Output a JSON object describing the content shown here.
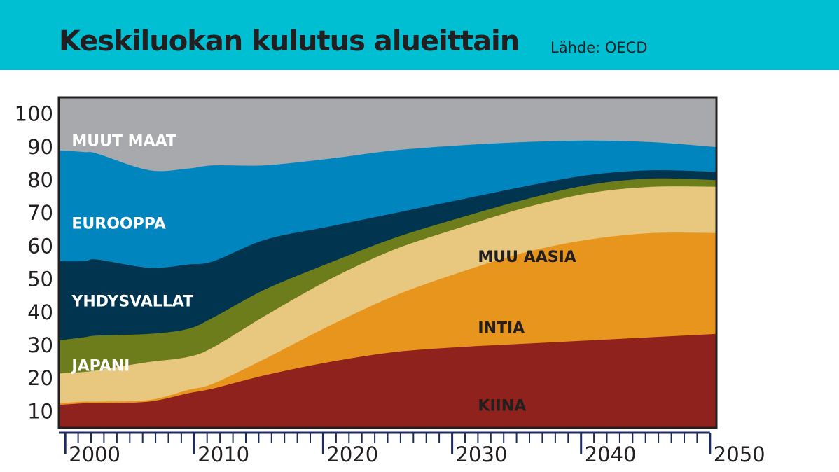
{
  "header": {
    "title": "Keskiluokan kulutus alueittain",
    "source": "Lähde: OECD"
  },
  "chart_data": {
    "type": "area",
    "stacked": true,
    "title": "Keskiluokan kulutus alueittain",
    "subtitle": "Lähde: OECD",
    "xlabel": "",
    "ylabel": "",
    "xlim": [
      1999,
      2050
    ],
    "ylim": [
      5,
      105
    ],
    "grid": false,
    "legend": "inline labels",
    "y_ticks": [
      "100",
      "90",
      "80",
      "70",
      "60",
      "50",
      "40",
      "30",
      "20",
      "10"
    ],
    "x_ticks": [
      "2000",
      "2010",
      "2020",
      "2030",
      "2040",
      "2050"
    ],
    "x": [
      1999,
      2001,
      2002,
      2006,
      2009,
      2011,
      2015,
      2020,
      2025,
      2030,
      2035,
      2040,
      2045,
      2050
    ],
    "series": [
      {
        "name": "KIINA",
        "color": "#8f221d",
        "values": [
          7,
          7.5,
          7.5,
          8,
          10.5,
          12,
          16,
          20,
          23,
          24.5,
          25.5,
          26.5,
          27.5,
          28.5
        ]
      },
      {
        "name": "INTIA",
        "color": "#e8951e",
        "values": [
          0.5,
          0.5,
          0.5,
          0.5,
          1,
          1.5,
          5,
          11,
          17,
          22.5,
          27.5,
          30.5,
          31.5,
          30.5
        ]
      },
      {
        "name": "JAPANI",
        "color": "#2e2e2e",
        "values": [
          0,
          0,
          0,
          0,
          0,
          0,
          0,
          0,
          0,
          0,
          0,
          0,
          0,
          0
        ],
        "label_only": true
      },
      {
        "name": "MUU AASIA",
        "color": "#e8c77f",
        "values": [
          9,
          9,
          9.5,
          11.5,
          10,
          11,
          13,
          14,
          14,
          13.5,
          13.5,
          14,
          14,
          14
        ]
      },
      {
        "name": "Japani (olive band)",
        "color": "#6d7d1b",
        "values": [
          10,
          10.5,
          10.5,
          8.5,
          8.5,
          9,
          8,
          5,
          3.5,
          3,
          2.5,
          2.5,
          2.5,
          2
        ]
      },
      {
        "name": "YHDYSVALLAT",
        "color": "#00344f",
        "values": [
          24,
          23,
          23,
          20,
          19.5,
          17,
          15,
          11,
          7.5,
          5.5,
          4,
          3,
          2.5,
          2.5
        ]
      },
      {
        "name": "EUROOPPA",
        "color": "#0085bf",
        "values": [
          33.5,
          33,
          32,
          29.5,
          29,
          29,
          22.5,
          20.5,
          19,
          16.5,
          13.5,
          10.5,
          8.5,
          7.5
        ]
      },
      {
        "name": "MUUT MAAT",
        "color": "#a7a9ac",
        "values": [
          16,
          16.5,
          17,
          22,
          21.5,
          21.5,
          20.5,
          18.5,
          16,
          14.5,
          13.5,
          13,
          13.5,
          15
        ]
      }
    ],
    "area_labels": [
      {
        "text": "MUUT MAAT",
        "color": "#ffffff",
        "at": [
          2000,
          91.5
        ]
      },
      {
        "text": "EUROOPPA",
        "color": "#ffffff",
        "at": [
          2000,
          66.5
        ]
      },
      {
        "text": "YHDYSVALLAT",
        "color": "#ffffff",
        "at": [
          2000,
          43
        ]
      },
      {
        "text": "JAPANI",
        "color": "#ffffff",
        "at": [
          2000,
          23.5
        ]
      },
      {
        "text": "MUU AASIA",
        "color": "#231f20",
        "at": [
          2031.5,
          56.5
        ]
      },
      {
        "text": "INTIA",
        "color": "#231f20",
        "at": [
          2031.5,
          35
        ]
      },
      {
        "text": "KIINA",
        "color": "#231f20",
        "at": [
          2031.5,
          11.5
        ]
      }
    ]
  }
}
